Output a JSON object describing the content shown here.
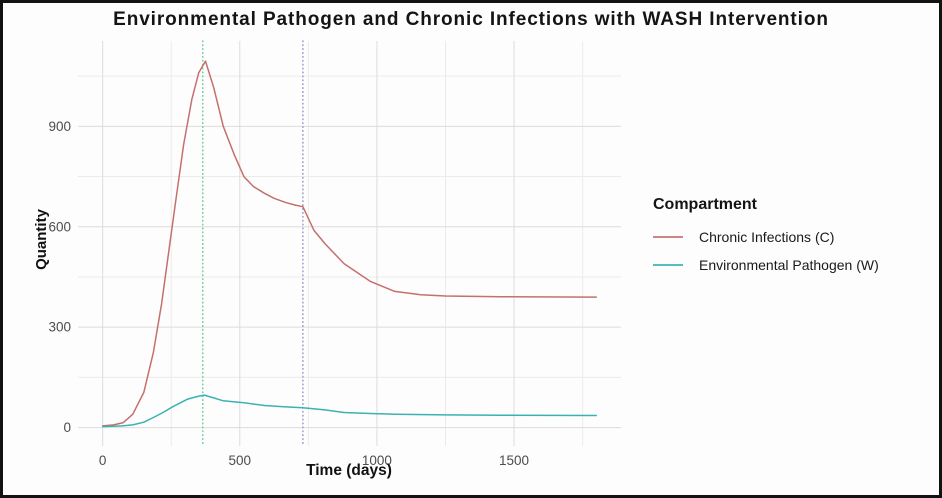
{
  "chart_data": {
    "type": "line",
    "title": "Environmental Pathogen and Chronic Infections with WASH Intervention",
    "xlabel": "Time (days)",
    "ylabel": "Quantity",
    "legend_title": "Compartment",
    "legend_position": "right",
    "grid": true,
    "x_domain": [
      -90,
      1890
    ],
    "y_domain": [
      -55,
      1155
    ],
    "x_ticks": [
      0,
      500,
      1000,
      1500
    ],
    "x_minor_ticks": [
      250,
      750,
      1250,
      1750
    ],
    "y_ticks": [
      0,
      300,
      600,
      900
    ],
    "y_minor_ticks": [
      150,
      450,
      750,
      1050
    ],
    "vlines": [
      {
        "x": 365,
        "color": "#74cf98",
        "style": "dotted"
      },
      {
        "x": 730,
        "color": "#9b9fcd",
        "style": "dotted"
      }
    ],
    "series": [
      {
        "name": "Chronic Infections (C)",
        "color": "#c4706d",
        "points": [
          [
            0,
            5
          ],
          [
            40,
            8
          ],
          [
            75,
            15
          ],
          [
            110,
            40
          ],
          [
            150,
            105
          ],
          [
            185,
            225
          ],
          [
            215,
            370
          ],
          [
            240,
            520
          ],
          [
            265,
            670
          ],
          [
            295,
            845
          ],
          [
            325,
            980
          ],
          [
            350,
            1060
          ],
          [
            375,
            1095
          ],
          [
            405,
            1015
          ],
          [
            440,
            900
          ],
          [
            480,
            815
          ],
          [
            515,
            750
          ],
          [
            550,
            720
          ],
          [
            590,
            700
          ],
          [
            625,
            685
          ],
          [
            665,
            673
          ],
          [
            700,
            665
          ],
          [
            730,
            660
          ],
          [
            770,
            590
          ],
          [
            810,
            550
          ],
          [
            880,
            490
          ],
          [
            975,
            437
          ],
          [
            1065,
            407
          ],
          [
            1160,
            397
          ],
          [
            1250,
            393
          ],
          [
            1450,
            391
          ],
          [
            1800,
            390
          ]
        ]
      },
      {
        "name": "Environmental Pathogen (W)",
        "color": "#3bb2b1",
        "points": [
          [
            0,
            3
          ],
          [
            70,
            5
          ],
          [
            110,
            8
          ],
          [
            150,
            16
          ],
          [
            185,
            30
          ],
          [
            220,
            45
          ],
          [
            255,
            62
          ],
          [
            310,
            85
          ],
          [
            345,
            93
          ],
          [
            370,
            97
          ],
          [
            400,
            90
          ],
          [
            440,
            80
          ],
          [
            515,
            74
          ],
          [
            590,
            66
          ],
          [
            660,
            62
          ],
          [
            730,
            59
          ],
          [
            810,
            53
          ],
          [
            880,
            45
          ],
          [
            975,
            42
          ],
          [
            1065,
            40
          ],
          [
            1250,
            38
          ],
          [
            1450,
            37
          ],
          [
            1800,
            36
          ]
        ]
      }
    ],
    "colors": {
      "grid_major": "#dcdcdc",
      "grid_minor": "#ebebeb",
      "tick_text": "#4c4c4c"
    }
  }
}
